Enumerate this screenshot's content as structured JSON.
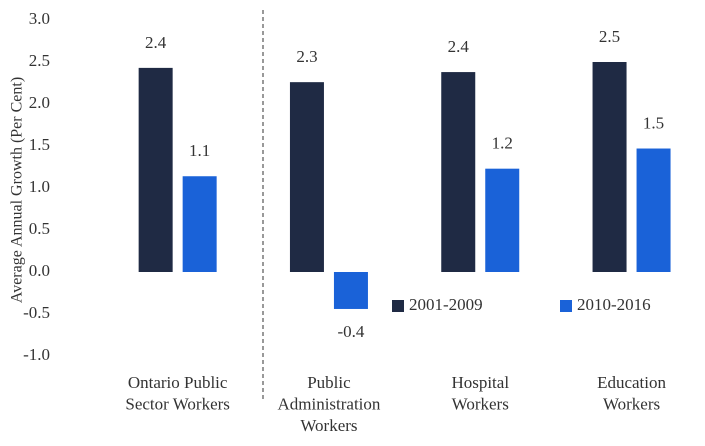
{
  "chart_data": {
    "type": "bar",
    "y_label": "Average Annual Growth (Per Cent)",
    "categories": [
      [
        "Ontario Public",
        "Sector Workers"
      ],
      [
        "Public",
        "Administration",
        "Workers"
      ],
      [
        "Hospital",
        "Workers"
      ],
      [
        "Education",
        "Workers"
      ]
    ],
    "series": [
      {
        "name": "2001-2009",
        "color": "#1f2a44",
        "values": [
          2.43,
          2.26,
          2.38,
          2.5
        ],
        "value_labels": [
          "2.4",
          "2.3",
          "2.4",
          "2.5"
        ]
      },
      {
        "name": "2010-2016",
        "color": "#1a62d8",
        "values": [
          1.14,
          -0.44,
          1.23,
          1.47
        ],
        "value_labels": [
          "1.1",
          "-0.4",
          "1.2",
          "1.5"
        ]
      }
    ],
    "ylim": [
      -1,
      3
    ],
    "yticks": [
      {
        "value": -1,
        "label": "-1.0"
      },
      -0.5,
      {
        "value": 0,
        "label": "0.0"
      },
      0.5,
      {
        "value": 1,
        "label": "1.0"
      },
      1.5,
      {
        "value": 2,
        "label": "2.0"
      },
      2.5,
      {
        "value": 3,
        "label": "3.0"
      }
    ],
    "grid": false,
    "legend_position": "lower right"
  }
}
